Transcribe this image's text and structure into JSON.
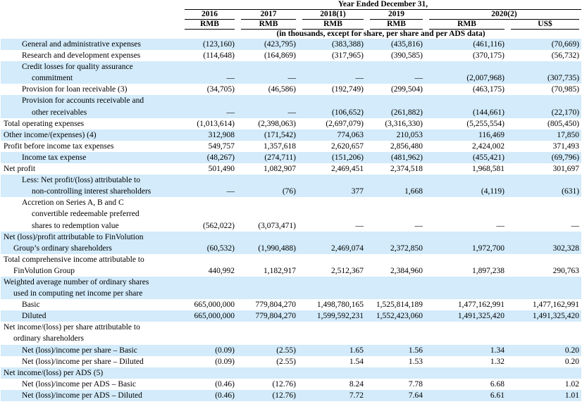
{
  "header": {
    "title": "Year Ended December 31,",
    "years": [
      "2016",
      "2017",
      "2018(1)",
      "2019",
      "2020(2)"
    ],
    "currencies": [
      "RMB",
      "RMB",
      "RMB",
      "RMB",
      "RMB",
      "US$"
    ],
    "note": "(in thousands, except for share, per share and per ADS data)"
  },
  "rows": [
    {
      "label": [
        "General and administrative expenses"
      ],
      "values": [
        "(123,160)",
        "(423,795)",
        "(383,388)",
        "(435,816)",
        "(461,116)",
        "(70,669)"
      ]
    },
    {
      "label": [
        "Research and development expenses"
      ],
      "values": [
        "(114,648)",
        "(164,869)",
        "(317,965)",
        "(390,585)",
        "(370,175)",
        "(56,732)"
      ]
    },
    {
      "label": [
        "Credit losses for quality assurance",
        "commitment"
      ],
      "values": [
        "—",
        "—",
        "—",
        "—",
        "(2,007,968)",
        "(307,735)"
      ]
    },
    {
      "label": [
        "Provision for loan receivable (3)"
      ],
      "values": [
        "(34,705)",
        "(46,586)",
        "(192,749)",
        "(299,504)",
        "(463,175)",
        "(70,985)"
      ]
    },
    {
      "label": [
        "Provision for accounts receivable and",
        "other receivables"
      ],
      "values": [
        "—",
        "—",
        "(106,652)",
        "(261,882)",
        "(144,661)",
        "(22,170)"
      ]
    },
    {
      "label": [
        "Total operating expenses"
      ],
      "values": [
        "(1,013,614)",
        "(2,398,063)",
        "(2,697,079)",
        "(3,316,330)",
        "(5,255,554)",
        "(805,450)"
      ]
    },
    {
      "label": [
        "Other income/(expenses) (4)"
      ],
      "values": [
        "312,908",
        "(171,542)",
        "774,063",
        "210,053",
        "116,469",
        "17,850"
      ]
    },
    {
      "label": [
        "Profit before income tax expenses"
      ],
      "values": [
        "549,757",
        "1,357,618",
        "2,620,657",
        "2,856,480",
        "2,424,002",
        "371,493"
      ]
    },
    {
      "label": [
        "Income tax expense"
      ],
      "values": [
        "(48,267)",
        "(274,711)",
        "(151,206)",
        "(481,962)",
        "(455,421)",
        "(69,796)"
      ]
    },
    {
      "label": [
        "Net profit"
      ],
      "values": [
        "501,490",
        "1,082,907",
        "2,469,451",
        "2,374,518",
        "1,968,581",
        "301,697"
      ]
    },
    {
      "label": [
        "Less: Net profit/(loss) attributable to",
        "non-controlling interest shareholders"
      ],
      "values": [
        "—",
        "(76)",
        "377",
        "1,668",
        "(4,119)",
        "(631)"
      ]
    },
    {
      "label": [
        "Accretion on Series A, B and C",
        "convertible redeemable preferred",
        "shares to redemption value"
      ],
      "values": [
        "(562,022)",
        "(3,073,471)",
        "—",
        "—",
        "—",
        "—"
      ]
    },
    {
      "label": [
        "Net (loss)/profit attributable to FinVolution",
        "Group’s ordinary shareholders"
      ],
      "values": [
        "(60,532)",
        "(1,990,488)",
        "2,469,074",
        "2,372,850",
        "1,972,700",
        "302,328"
      ]
    },
    {
      "label": [
        "Total comprehensive income attributable to",
        "FinVolution Group"
      ],
      "values": [
        "440,992",
        "1,182,917",
        "2,512,367",
        "2,384,960",
        "1,897,238",
        "290,763"
      ]
    },
    {
      "label": [
        "Weighted average number of ordinary shares",
        "used in computing net income per share"
      ],
      "values": []
    },
    {
      "label": [
        "Basic"
      ],
      "values": [
        "665,000,000",
        "779,804,270",
        "1,498,780,165",
        "1,525,814,189",
        "1,477,162,991",
        "1,477,162,991"
      ]
    },
    {
      "label": [
        "Diluted"
      ],
      "values": [
        "665,000,000",
        "779,804,270",
        "1,599,592,231",
        "1,552,423,060",
        "1,491,325,420",
        "1,491,325,420"
      ]
    },
    {
      "label": [
        "Net income/(loss) per share attributable to",
        "ordinary shareholders"
      ],
      "values": []
    },
    {
      "label": [
        "Net (loss)/income per share – Basic"
      ],
      "values": [
        "(0.09)",
        "(2.55)",
        "1.65",
        "1.56",
        "1.34",
        "0.20"
      ]
    },
    {
      "label": [
        "Net (loss)/income per share – Diluted"
      ],
      "values": [
        "(0.09)",
        "(2.55)",
        "1.54",
        "1.53",
        "1.32",
        "0.20"
      ]
    },
    {
      "label": [
        "Net income/(loss) per ADS (5)"
      ],
      "values": []
    },
    {
      "label": [
        "Net (loss)/income per ADS – Basic"
      ],
      "values": [
        "(0.46)",
        "(12.76)",
        "8.24",
        "7.78",
        "6.68",
        "1.02"
      ]
    },
    {
      "label": [
        "Net (loss)/income per ADS – Diluted"
      ],
      "values": [
        "(0.46)",
        "(12.76)",
        "7.72",
        "7.64",
        "6.61",
        "1.01"
      ]
    }
  ]
}
